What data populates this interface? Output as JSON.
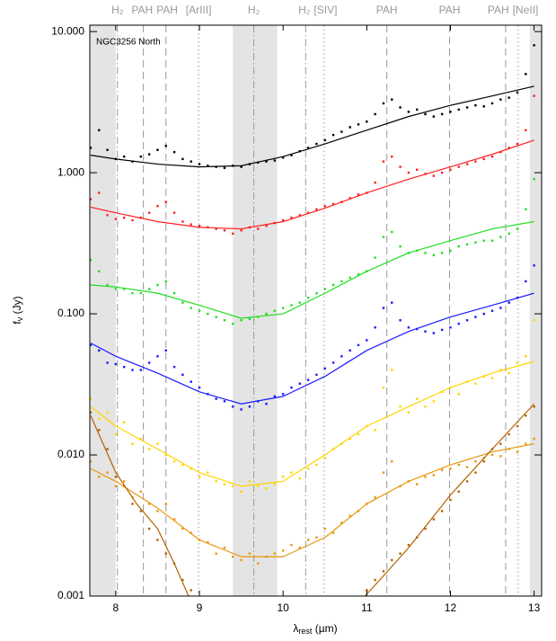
{
  "chart_data": {
    "type": "scatter",
    "annotation": "NGC3256 North",
    "ylabel": "f",
    "ylabel_sub": "ν",
    "ylabel_unit": " (Jy)",
    "xlabel": "λ",
    "xlabel_sub": "rest",
    "xlabel_unit": " (µm)",
    "xlim": [
      7.69,
      13.09
    ],
    "xticks": [
      8,
      9,
      10,
      11,
      12,
      13
    ],
    "ylim": [
      0.001,
      11.1
    ],
    "log_y": true,
    "yticks": [
      {
        "value": 10,
        "label": "10.000"
      },
      {
        "value": 1,
        "label": "1.000"
      },
      {
        "value": 0.1,
        "label": "0.100"
      },
      {
        "value": 0.01,
        "label": "0.010"
      },
      {
        "value": 0.001,
        "label": "0.001"
      }
    ],
    "shaded_regions": [
      [
        7.69,
        8.0
      ],
      [
        9.4,
        9.93
      ],
      [
        12.95,
        13.09
      ]
    ],
    "features": [
      {
        "x": 8.02,
        "label": "H₂",
        "style": "dashdot"
      },
      {
        "x": 8.33,
        "label": "PAH",
        "style": "dashed"
      },
      {
        "x": 8.6,
        "label": "PAH",
        "style": "dashed"
      },
      {
        "x": 8.99,
        "label": "[ArIII]",
        "style": "dotted"
      },
      {
        "x": 9.65,
        "label": "H₂",
        "style": "dashdot"
      },
      {
        "x": 10.27,
        "label": "H₂",
        "style": "dashdot"
      },
      {
        "x": 10.49,
        "label": "[SIV]",
        "style": "dotted"
      },
      {
        "x": 11.24,
        "label": "PAH",
        "style": "dashed"
      },
      {
        "x": 11.99,
        "label": "PAH",
        "style": "dashed"
      },
      {
        "x": 12.66,
        "label": "PAH",
        "style": "dashed"
      },
      {
        "x": 12.81,
        "label": "[NeII]",
        "style": "dotted"
      }
    ],
    "x": [
      7.7,
      7.8,
      7.9,
      8.0,
      8.1,
      8.2,
      8.3,
      8.4,
      8.5,
      8.6,
      8.7,
      8.8,
      8.9,
      9.0,
      9.1,
      9.2,
      9.3,
      9.4,
      9.5,
      9.6,
      9.7,
      9.8,
      9.9,
      10.0,
      10.1,
      10.2,
      10.3,
      10.4,
      10.5,
      10.6,
      10.7,
      10.8,
      10.9,
      11.0,
      11.1,
      11.2,
      11.3,
      11.4,
      11.5,
      11.6,
      11.7,
      11.8,
      11.9,
      12.0,
      12.1,
      12.2,
      12.3,
      12.4,
      12.5,
      12.6,
      12.7,
      12.8,
      12.9,
      13.0
    ],
    "series": [
      {
        "kind": "points",
        "color": "#000000",
        "values": [
          1.5,
          2.0,
          1.45,
          1.25,
          1.3,
          1.2,
          1.3,
          1.35,
          1.45,
          1.55,
          1.4,
          1.25,
          1.2,
          1.15,
          1.12,
          1.1,
          1.08,
          1.12,
          1.1,
          1.15,
          1.18,
          1.2,
          1.22,
          1.28,
          1.33,
          1.42,
          1.5,
          1.6,
          1.7,
          1.85,
          1.95,
          2.1,
          2.2,
          2.3,
          2.6,
          3.1,
          3.3,
          2.9,
          2.7,
          2.8,
          2.6,
          2.5,
          2.6,
          2.7,
          2.8,
          2.9,
          3.0,
          2.95,
          3.1,
          3.3,
          3.4,
          3.7,
          5.0,
          8.0
        ]
      },
      {
        "kind": "points",
        "color": "#ff2020",
        "values": [
          0.65,
          0.72,
          0.5,
          0.47,
          0.48,
          0.46,
          0.48,
          0.52,
          0.58,
          0.62,
          0.52,
          0.45,
          0.43,
          0.42,
          0.41,
          0.4,
          0.39,
          0.37,
          0.39,
          0.41,
          0.4,
          0.42,
          0.44,
          0.46,
          0.48,
          0.5,
          0.52,
          0.55,
          0.58,
          0.6,
          0.62,
          0.66,
          0.7,
          0.72,
          0.85,
          1.2,
          1.3,
          1.1,
          1.0,
          1.05,
          0.98,
          0.95,
          1.0,
          1.05,
          1.1,
          1.15,
          1.2,
          1.25,
          1.3,
          1.4,
          1.5,
          1.6,
          2.0,
          3.5
        ]
      },
      {
        "kind": "points",
        "color": "#22dd22",
        "values": [
          0.24,
          0.2,
          0.16,
          0.15,
          0.15,
          0.14,
          0.14,
          0.15,
          0.16,
          0.17,
          0.14,
          0.12,
          0.11,
          0.105,
          0.1,
          0.095,
          0.09,
          0.085,
          0.09,
          0.092,
          0.095,
          0.1,
          0.105,
          0.11,
          0.115,
          0.12,
          0.13,
          0.14,
          0.15,
          0.16,
          0.17,
          0.18,
          0.19,
          0.2,
          0.25,
          0.35,
          0.38,
          0.3,
          0.27,
          0.28,
          0.27,
          0.26,
          0.27,
          0.28,
          0.3,
          0.31,
          0.32,
          0.33,
          0.33,
          0.35,
          0.37,
          0.4,
          0.55,
          0.9
        ]
      },
      {
        "kind": "points",
        "color": "#1a1aff",
        "values": [
          0.06,
          0.055,
          0.045,
          0.044,
          0.042,
          0.04,
          0.04,
          0.045,
          0.05,
          0.055,
          0.042,
          0.037,
          0.033,
          0.03,
          0.027,
          0.025,
          0.024,
          0.022,
          0.021,
          0.022,
          0.024,
          0.023,
          0.026,
          0.027,
          0.03,
          0.032,
          0.034,
          0.037,
          0.041,
          0.045,
          0.05,
          0.055,
          0.06,
          0.065,
          0.08,
          0.11,
          0.12,
          0.09,
          0.08,
          0.078,
          0.075,
          0.073,
          0.077,
          0.08,
          0.085,
          0.09,
          0.095,
          0.1,
          0.105,
          0.11,
          0.12,
          0.13,
          0.17,
          0.22
        ]
      },
      {
        "kind": "points",
        "color": "#ffd400",
        "values": [
          0.025,
          0.018,
          0.02,
          0.014,
          0.017,
          0.012,
          0.013,
          0.011,
          0.012,
          0.01,
          0.009,
          0.0085,
          0.008,
          0.007,
          0.0075,
          0.0065,
          0.0062,
          0.006,
          0.0055,
          0.0065,
          0.006,
          0.0058,
          0.0062,
          0.007,
          0.0075,
          0.0068,
          0.008,
          0.0085,
          0.0095,
          0.011,
          0.012,
          0.013,
          0.014,
          0.016,
          0.015,
          0.03,
          0.04,
          0.022,
          0.02,
          0.025,
          0.022,
          0.024,
          0.028,
          0.03,
          0.027,
          0.033,
          0.032,
          0.036,
          0.035,
          0.04,
          0.038,
          0.045,
          0.05,
          0.09
        ]
      },
      {
        "kind": "points",
        "color": "#e8960a",
        "values": [
          0.009,
          0.007,
          0.0075,
          0.006,
          0.0065,
          0.005,
          0.0055,
          0.0045,
          0.004,
          0.0045,
          0.0035,
          0.003,
          0.0028,
          0.0025,
          0.0024,
          0.002,
          0.0022,
          0.0019,
          0.0018,
          0.002,
          0.0017,
          0.0019,
          0.002,
          0.0021,
          0.0023,
          0.0022,
          0.0025,
          0.0026,
          0.003,
          0.0028,
          0.0033,
          0.0037,
          0.004,
          0.0045,
          0.005,
          0.0075,
          0.009,
          0.006,
          0.0065,
          0.0062,
          0.007,
          0.0072,
          0.0078,
          0.008,
          0.0085,
          0.0082,
          0.009,
          0.0095,
          0.01,
          0.0098,
          0.011,
          0.0105,
          0.012,
          0.013
        ]
      },
      {
        "kind": "points",
        "color": "#b36200",
        "values": [
          0.02,
          0.015,
          0.011,
          0.007,
          0.006,
          0.0045,
          0.004,
          0.003,
          0.0025,
          0.002,
          0.0017,
          0.0013,
          0.0011,
          null,
          null,
          null,
          null,
          null,
          null,
          null,
          null,
          null,
          null,
          null,
          null,
          null,
          null,
          null,
          null,
          null,
          null,
          null,
          null,
          0.0011,
          0.0013,
          0.0015,
          0.0018,
          0.002,
          0.0023,
          0.0026,
          0.003,
          0.0035,
          0.004,
          0.0048,
          0.0055,
          0.0065,
          0.0075,
          0.009,
          0.011,
          0.012,
          0.014,
          0.016,
          0.019,
          0.022
        ]
      },
      {
        "kind": "line",
        "color": "#000000",
        "x": [
          7.7,
          8.0,
          8.5,
          9.0,
          9.5,
          10.0,
          10.5,
          11.0,
          11.5,
          12.0,
          12.5,
          13.0
        ],
        "values": [
          1.33,
          1.25,
          1.15,
          1.1,
          1.12,
          1.3,
          1.6,
          2.0,
          2.5,
          3.0,
          3.5,
          4.1
        ]
      },
      {
        "kind": "line",
        "color": "#ff2020",
        "x": [
          7.7,
          8.0,
          8.5,
          9.0,
          9.5,
          10.0,
          10.5,
          11.0,
          11.5,
          12.0,
          12.5,
          13.0
        ],
        "values": [
          0.57,
          0.52,
          0.45,
          0.41,
          0.4,
          0.45,
          0.56,
          0.72,
          0.9,
          1.1,
          1.35,
          1.7
        ]
      },
      {
        "kind": "line",
        "color": "#22dd22",
        "x": [
          7.7,
          8.0,
          8.5,
          9.0,
          9.5,
          10.0,
          10.5,
          11.0,
          11.5,
          12.0,
          12.5,
          13.0
        ],
        "values": [
          0.16,
          0.155,
          0.14,
          0.115,
          0.093,
          0.1,
          0.14,
          0.2,
          0.27,
          0.33,
          0.4,
          0.45
        ]
      },
      {
        "kind": "line",
        "color": "#1a1aff",
        "x": [
          7.7,
          8.0,
          8.5,
          9.0,
          9.5,
          10.0,
          10.5,
          11.0,
          11.5,
          12.0,
          12.5,
          13.0
        ],
        "values": [
          0.062,
          0.05,
          0.038,
          0.028,
          0.023,
          0.026,
          0.036,
          0.055,
          0.075,
          0.095,
          0.115,
          0.14
        ]
      },
      {
        "kind": "line",
        "color": "#ffd400",
        "x": [
          7.7,
          8.0,
          8.5,
          9.0,
          9.5,
          10.0,
          10.5,
          11.0,
          11.5,
          12.0,
          12.5,
          13.0
        ],
        "values": [
          0.022,
          0.016,
          0.011,
          0.0075,
          0.006,
          0.0065,
          0.01,
          0.016,
          0.022,
          0.03,
          0.038,
          0.046
        ]
      },
      {
        "kind": "line",
        "color": "#e8960a",
        "x": [
          7.7,
          8.0,
          8.5,
          9.0,
          9.5,
          10.0,
          10.5,
          11.0,
          11.5,
          12.0,
          12.5,
          13.0
        ],
        "values": [
          0.008,
          0.0065,
          0.0042,
          0.0025,
          0.0019,
          0.0019,
          0.0026,
          0.0045,
          0.0065,
          0.0085,
          0.0105,
          0.012
        ]
      },
      {
        "kind": "line",
        "color": "#b36200",
        "x": [
          7.7,
          8.0,
          8.25,
          8.5,
          8.7,
          8.87,
          9.9,
          10.98,
          11.25,
          11.5,
          12.0,
          12.5,
          13.0
        ],
        "values": [
          0.019,
          0.0075,
          0.0045,
          0.003,
          0.0017,
          0.001,
          null,
          0.001,
          0.0015,
          0.0022,
          0.0052,
          0.011,
          0.023
        ]
      }
    ]
  }
}
